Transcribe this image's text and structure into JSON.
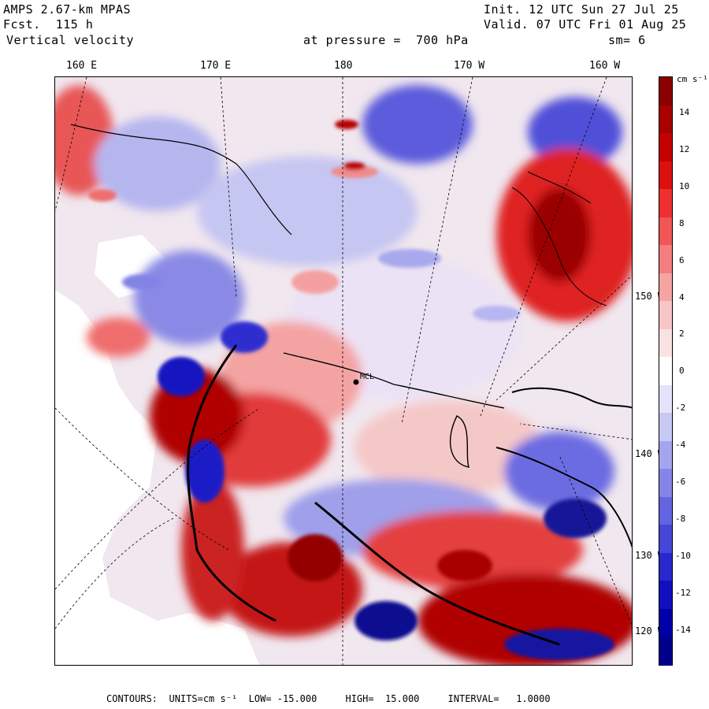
{
  "header": {
    "model": "AMPS 2.67-km MPAS",
    "forecast": "Fcst.  115 h",
    "field": "Vertical velocity",
    "init": "Init. 12 UTC Sun 27 Jul 25",
    "valid": "Valid. 07 UTC Fri 01 Aug 25",
    "level": "at pressure =  700 hPa",
    "smoothing": "sm= 6"
  },
  "longitude_labels": [
    "160 E",
    "170 E",
    "180",
    "170 W",
    "160 W"
  ],
  "latitude_labels": [
    "150 W",
    "140 W",
    "130 W",
    "120 W"
  ],
  "station": {
    "label": "MCL"
  },
  "colorbar": {
    "units": "cm s⁻¹",
    "ticks": [
      "14",
      "12",
      "10",
      "8",
      "6",
      "4",
      "2",
      "0",
      "-2",
      "-4",
      "-6",
      "-8",
      "-10",
      "-12",
      "-14"
    ],
    "colors": [
      "#8b0000",
      "#a80000",
      "#c40000",
      "#dd1010",
      "#ee3030",
      "#f25555",
      "#f47d7d",
      "#f6a3a3",
      "#f8c6c6",
      "#fbe2e2",
      "#ffffff",
      "#e3e3fb",
      "#c8c8f5",
      "#a5a5ee",
      "#8585e8",
      "#6464e1",
      "#4646d8",
      "#2828ce",
      "#1010c0",
      "#0000a8",
      "#00008b"
    ]
  },
  "footer": {
    "label": "CONTOURS:",
    "units": "UNITS=cm s⁻¹",
    "low": "LOW= -15.000",
    "high": "HIGH=  15.000",
    "interval": "INTERVAL=   1.0000"
  }
}
